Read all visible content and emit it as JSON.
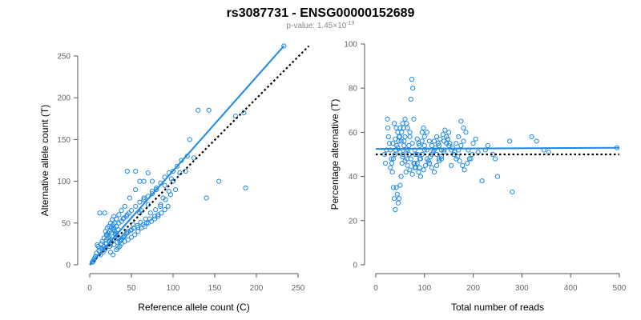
{
  "title": "rs3087731 - ENSG00000152689",
  "subtitle": {
    "prefix": "p-value: 1.45×10",
    "exponent": "-19"
  },
  "colors": {
    "points": "#1e88e5",
    "fit_line": "#1e88e5",
    "reference_line": "#000000"
  },
  "chart_data": [
    {
      "type": "scatter",
      "xlabel": "Reference allele count (C)",
      "ylabel": "Alternative allele count (T)",
      "xlim": [
        0,
        250
      ],
      "ylim": [
        0,
        250
      ],
      "xticks": [
        0,
        50,
        100,
        150,
        200,
        250
      ],
      "yticks": [
        0,
        50,
        100,
        150,
        200,
        250
      ],
      "fit_line": {
        "from": [
          0,
          0
        ],
        "to": [
          233,
          262
        ]
      },
      "reference_line": {
        "from": [
          0,
          0
        ],
        "to": [
          263,
          262
        ]
      },
      "points": [
        [
          233,
          262
        ],
        [
          130,
          185
        ],
        [
          143,
          185
        ],
        [
          185,
          182
        ],
        [
          175,
          178
        ],
        [
          187,
          92
        ],
        [
          140,
          80
        ],
        [
          155,
          100
        ],
        [
          60,
          62
        ],
        [
          62,
          65
        ],
        [
          70,
          72
        ],
        [
          65,
          80
        ],
        [
          55,
          90
        ],
        [
          75,
          85
        ],
        [
          80,
          90
        ],
        [
          90,
          95
        ],
        [
          100,
          100
        ],
        [
          105,
          118
        ],
        [
          110,
          125
        ],
        [
          117,
          130
        ],
        [
          120,
          150
        ],
        [
          125,
          128
        ],
        [
          115,
          112
        ],
        [
          108,
          110
        ],
        [
          98,
          103
        ],
        [
          95,
          88
        ],
        [
          88,
          80
        ],
        [
          85,
          70
        ],
        [
          82,
          60
        ],
        [
          78,
          58
        ],
        [
          72,
          55
        ],
        [
          68,
          50
        ],
        [
          64,
          48
        ],
        [
          58,
          45
        ],
        [
          52,
          48
        ],
        [
          50,
          42
        ],
        [
          46,
          40
        ],
        [
          44,
          38
        ],
        [
          42,
          35
        ],
        [
          40,
          33
        ],
        [
          38,
          30
        ],
        [
          36,
          28
        ],
        [
          35,
          32
        ],
        [
          33,
          35
        ],
        [
          31,
          37
        ],
        [
          30,
          40
        ],
        [
          28,
          42
        ],
        [
          27,
          30
        ],
        [
          26,
          27
        ],
        [
          25,
          25
        ],
        [
          24,
          22
        ],
        [
          23,
          28
        ],
        [
          22,
          32
        ],
        [
          21,
          35
        ],
        [
          20,
          25
        ],
        [
          19,
          20
        ],
        [
          18,
          18
        ],
        [
          17,
          22
        ],
        [
          16,
          15
        ],
        [
          15,
          19
        ],
        [
          14,
          25
        ],
        [
          13,
          12
        ],
        [
          12,
          20
        ],
        [
          11,
          17
        ],
        [
          10,
          22
        ],
        [
          9,
          24
        ],
        [
          8,
          14
        ],
        [
          7,
          10
        ],
        [
          6,
          8
        ],
        [
          5,
          6
        ],
        [
          4,
          4
        ],
        [
          3,
          3
        ],
        [
          12,
          62
        ],
        [
          18,
          62
        ],
        [
          45,
          112
        ],
        [
          55,
          112
        ],
        [
          60,
          100
        ],
        [
          70,
          110
        ],
        [
          65,
          100
        ],
        [
          75,
          100
        ],
        [
          48,
          80
        ],
        [
          42,
          70
        ],
        [
          38,
          65
        ],
        [
          35,
          60
        ],
        [
          32,
          55
        ],
        [
          30,
          50
        ],
        [
          28,
          48
        ],
        [
          26,
          45
        ],
        [
          24,
          40
        ],
        [
          22,
          38
        ],
        [
          20,
          36
        ],
        [
          40,
          55
        ],
        [
          45,
          60
        ],
        [
          50,
          65
        ],
        [
          55,
          70
        ],
        [
          60,
          75
        ],
        [
          65,
          78
        ],
        [
          70,
          82
        ],
        [
          75,
          88
        ],
        [
          80,
          92
        ],
        [
          85,
          98
        ],
        [
          90,
          105
        ],
        [
          95,
          110
        ],
        [
          100,
          112
        ],
        [
          34,
          20
        ],
        [
          38,
          25
        ],
        [
          42,
          28
        ],
        [
          46,
          30
        ],
        [
          50,
          33
        ],
        [
          54,
          36
        ],
        [
          58,
          40
        ],
        [
          62,
          44
        ],
        [
          66,
          46
        ],
        [
          70,
          50
        ],
        [
          74,
          52
        ],
        [
          78,
          55
        ],
        [
          82,
          58
        ],
        [
          86,
          62
        ],
        [
          90,
          66
        ],
        [
          94,
          70
        ],
        [
          25,
          15
        ],
        [
          28,
          12
        ],
        [
          32,
          18
        ],
        [
          36,
          22
        ],
        [
          29,
          24
        ],
        [
          33,
          27
        ],
        [
          37,
          30
        ],
        [
          41,
          34
        ],
        [
          45,
          38
        ],
        [
          49,
          41
        ],
        [
          53,
          44
        ],
        [
          57,
          47
        ],
        [
          61,
          51
        ],
        [
          67,
          55
        ],
        [
          73,
          62
        ],
        [
          79,
          66
        ],
        [
          85,
          72
        ],
        [
          91,
          78
        ],
        [
          97,
          84
        ],
        [
          103,
          90
        ],
        [
          20,
          30
        ],
        [
          23,
          34
        ],
        [
          26,
          38
        ],
        [
          29,
          44
        ],
        [
          32,
          46
        ],
        [
          35,
          50
        ],
        [
          38,
          52
        ],
        [
          41,
          56
        ],
        [
          44,
          58
        ],
        [
          47,
          62
        ],
        [
          15,
          28
        ],
        [
          17,
          32
        ],
        [
          19,
          40
        ],
        [
          21,
          44
        ],
        [
          23,
          46
        ],
        [
          25,
          50
        ],
        [
          27,
          54
        ],
        [
          29,
          58
        ],
        [
          31,
          36
        ],
        [
          34,
          42
        ]
      ]
    },
    {
      "type": "scatter",
      "xlabel": "Total number of reads",
      "ylabel": "Percentage alternative (T)",
      "xlim": [
        0,
        500
      ],
      "ylim": [
        0,
        100
      ],
      "xticks": [
        0,
        100,
        200,
        300,
        400,
        500
      ],
      "yticks": [
        0,
        20,
        40,
        60,
        80,
        100
      ],
      "fit_line": {
        "from": [
          0,
          52.5
        ],
        "to": [
          500,
          53
        ]
      },
      "reference_line": {
        "from": [
          0,
          50
        ],
        "to": [
          500,
          50
        ]
      },
      "points": [
        [
          495,
          53
        ],
        [
          355,
          51
        ],
        [
          345,
          52
        ],
        [
          320,
          58
        ],
        [
          330,
          56
        ],
        [
          275,
          56
        ],
        [
          280,
          33
        ],
        [
          250,
          40
        ],
        [
          218,
          38
        ],
        [
          245,
          48
        ],
        [
          240,
          50
        ],
        [
          230,
          54
        ],
        [
          225,
          52
        ],
        [
          200,
          55
        ],
        [
          205,
          57
        ],
        [
          210,
          51
        ],
        [
          195,
          48
        ],
        [
          190,
          52
        ],
        [
          185,
          60
        ],
        [
          180,
          62
        ],
        [
          175,
          65
        ],
        [
          170,
          58
        ],
        [
          165,
          55
        ],
        [
          160,
          50
        ],
        [
          155,
          45
        ],
        [
          150,
          60
        ],
        [
          145,
          55
        ],
        [
          140,
          52
        ],
        [
          135,
          48
        ],
        [
          130,
          54
        ],
        [
          125,
          58
        ],
        [
          120,
          56
        ],
        [
          115,
          50
        ],
        [
          110,
          46
        ],
        [
          105,
          52
        ],
        [
          100,
          54
        ],
        [
          98,
          62
        ],
        [
          95,
          60
        ],
        [
          92,
          48
        ],
        [
          90,
          44
        ],
        [
          88,
          55
        ],
        [
          85,
          57
        ],
        [
          82,
          50
        ],
        [
          80,
          46
        ],
        [
          78,
          66
        ],
        [
          76,
          80
        ],
        [
          74,
          84
        ],
        [
          72,
          75
        ],
        [
          70,
          60
        ],
        [
          68,
          54
        ],
        [
          66,
          52
        ],
        [
          64,
          48
        ],
        [
          62,
          42
        ],
        [
          60,
          58
        ],
        [
          58,
          56
        ],
        [
          56,
          50
        ],
        [
          54,
          46
        ],
        [
          52,
          40
        ],
        [
          50,
          36
        ],
        [
          48,
          30
        ],
        [
          46,
          28
        ],
        [
          44,
          32
        ],
        [
          42,
          35
        ],
        [
          40,
          25
        ],
        [
          38,
          30
        ],
        [
          36,
          35
        ],
        [
          34,
          42
        ],
        [
          32,
          48
        ],
        [
          30,
          52
        ],
        [
          28,
          55
        ],
        [
          26,
          58
        ],
        [
          25,
          62
        ],
        [
          24,
          66
        ],
        [
          22,
          52
        ],
        [
          20,
          46
        ],
        [
          18,
          50
        ],
        [
          45,
          60
        ],
        [
          50,
          62
        ],
        [
          55,
          64
        ],
        [
          60,
          66
        ],
        [
          65,
          62
        ],
        [
          70,
          58
        ],
        [
          75,
          55
        ],
        [
          80,
          52
        ],
        [
          85,
          50
        ],
        [
          90,
          54
        ],
        [
          95,
          56
        ],
        [
          100,
          58
        ],
        [
          105,
          60
        ],
        [
          110,
          56
        ],
        [
          115,
          54
        ],
        [
          120,
          52
        ],
        [
          125,
          50
        ],
        [
          130,
          48
        ],
        [
          135,
          52
        ],
        [
          140,
          56
        ],
        [
          145,
          58
        ],
        [
          150,
          54
        ],
        [
          155,
          52
        ],
        [
          160,
          50
        ],
        [
          165,
          48
        ],
        [
          170,
          52
        ],
        [
          175,
          54
        ],
        [
          180,
          56
        ],
        [
          35,
          55
        ],
        [
          40,
          57
        ],
        [
          45,
          53
        ],
        [
          50,
          51
        ],
        [
          55,
          49
        ],
        [
          60,
          47
        ],
        [
          65,
          45
        ],
        [
          70,
          43
        ],
        [
          75,
          41
        ],
        [
          80,
          44
        ],
        [
          85,
          46
        ],
        [
          90,
          48
        ],
        [
          95,
          50
        ],
        [
          100,
          52
        ],
        [
          105,
          48
        ],
        [
          110,
          46
        ],
        [
          115,
          44
        ],
        [
          120,
          42
        ],
        [
          125,
          45
        ],
        [
          130,
          47
        ],
        [
          135,
          49
        ],
        [
          140,
          51
        ],
        [
          38,
          64
        ],
        [
          42,
          62
        ],
        [
          48,
          58
        ],
        [
          52,
          56
        ],
        [
          58,
          54
        ],
        [
          62,
          52
        ],
        [
          68,
          50
        ],
        [
          72,
          48
        ],
        [
          78,
          46
        ],
        [
          82,
          44
        ],
        [
          88,
          42
        ],
        [
          92,
          40
        ],
        [
          98,
          43
        ],
        [
          102,
          45
        ],
        [
          108,
          47
        ],
        [
          112,
          49
        ],
        [
          118,
          51
        ],
        [
          122,
          53
        ],
        [
          128,
          55
        ],
        [
          132,
          57
        ],
        [
          138,
          59
        ],
        [
          142,
          61
        ],
        [
          148,
          57
        ],
        [
          152,
          55
        ],
        [
          158,
          53
        ],
        [
          162,
          51
        ],
        [
          168,
          49
        ],
        [
          172,
          47
        ],
        [
          178,
          45
        ],
        [
          182,
          43
        ],
        [
          188,
          46
        ],
        [
          192,
          48
        ],
        [
          198,
          50
        ],
        [
          30,
          44
        ],
        [
          33,
          46
        ],
        [
          36,
          48
        ],
        [
          39,
          50
        ],
        [
          41,
          52
        ],
        [
          43,
          54
        ],
        [
          47,
          56
        ],
        [
          49,
          58
        ],
        [
          53,
          60
        ],
        [
          57,
          62
        ],
        [
          63,
          64
        ]
      ]
    }
  ]
}
